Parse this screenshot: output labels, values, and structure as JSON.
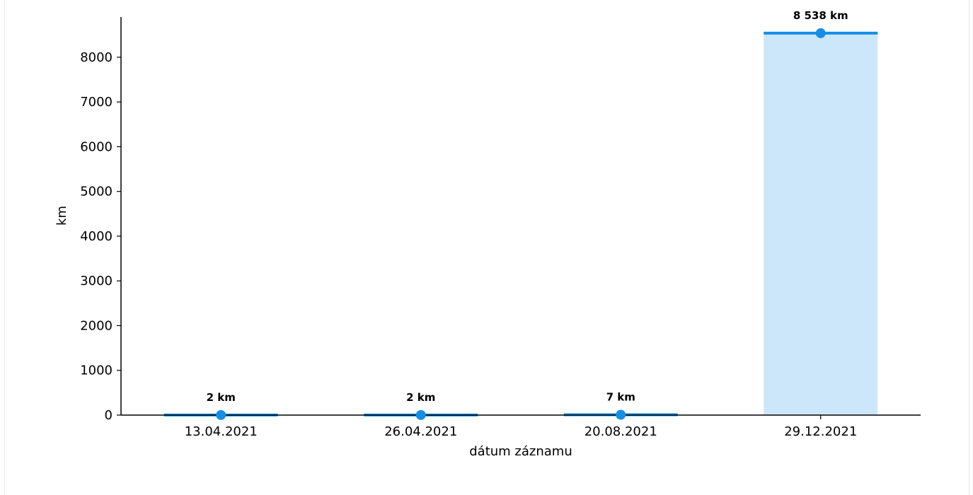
{
  "chart_data": {
    "type": "bar",
    "categories": [
      "13.04.2021",
      "26.04.2021",
      "20.08.2021",
      "29.12.2021"
    ],
    "values": [
      2,
      2,
      7,
      8538
    ],
    "data_labels": [
      "2 km",
      "2 km",
      "7 km",
      "8 538 km"
    ],
    "xlabel": "dátum záznamu",
    "ylabel": "km",
    "ylim": [
      0,
      8900
    ],
    "yticks": [
      0,
      1000,
      2000,
      3000,
      4000,
      5000,
      6000,
      7000,
      8000
    ],
    "grid": false,
    "colors": {
      "bar_fill": "#cce6fa",
      "bar_line": "#168ee6",
      "marker": "#168ee6",
      "axis": "#000000"
    }
  }
}
